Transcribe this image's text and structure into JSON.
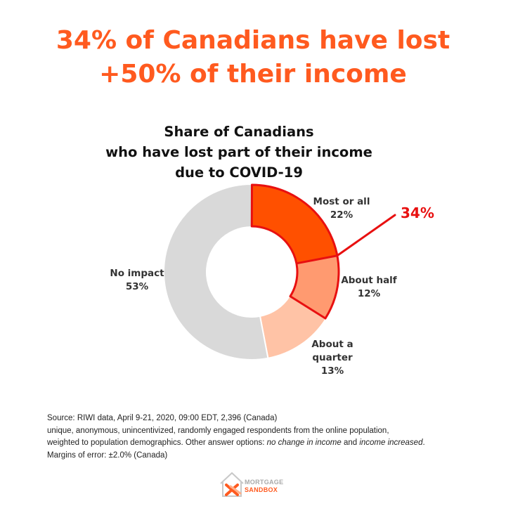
{
  "headline": {
    "line1": "34% of Canadians have lost",
    "line2": "+50% of their income"
  },
  "chart_data": {
    "type": "pie",
    "title": "Share of Canadians who have lost part of their income due to COVID-19",
    "title_lines": [
      "Share of Canadians",
      "who have lost part of their income",
      "due to COVID-19"
    ],
    "slices": [
      {
        "lines": [
          "Most or all"
        ],
        "value": 22,
        "value_label": "22%",
        "color": "#ff5000"
      },
      {
        "lines": [
          "About half"
        ],
        "value": 12,
        "value_label": "12%",
        "color": "#ff9a70"
      },
      {
        "lines": [
          "About a",
          "quarter"
        ],
        "value": 13,
        "value_label": "13%",
        "color": "#ffc3a6"
      },
      {
        "lines": [
          "No impact"
        ],
        "value": 53,
        "value_label": "53%",
        "color": "#d9d9d9"
      }
    ],
    "highlight": {
      "slices": [
        0,
        1
      ],
      "label": "34%",
      "color": "#e81010"
    }
  },
  "source": {
    "line1": "Source: RIWI data, April 9-21, 2020, 09:00 EDT, 2,396 (Canada)",
    "line2": "unique, anonymous, unincentivized, randomly engaged respondents from the online population,",
    "line3_a": "weighted to population demographics. Other answer options: ",
    "line3_em1": "no change in income",
    "line3_b": " and ",
    "line3_em2": "income increased",
    "line3_c": ".",
    "line4": "Margins of error: ±2.0% (Canada)"
  },
  "logo": {
    "line1": "MORTGAGE",
    "line2": "SANDBOX",
    "colors": {
      "gray": "#a9a9a9",
      "orange": "#ff5a1f"
    }
  }
}
